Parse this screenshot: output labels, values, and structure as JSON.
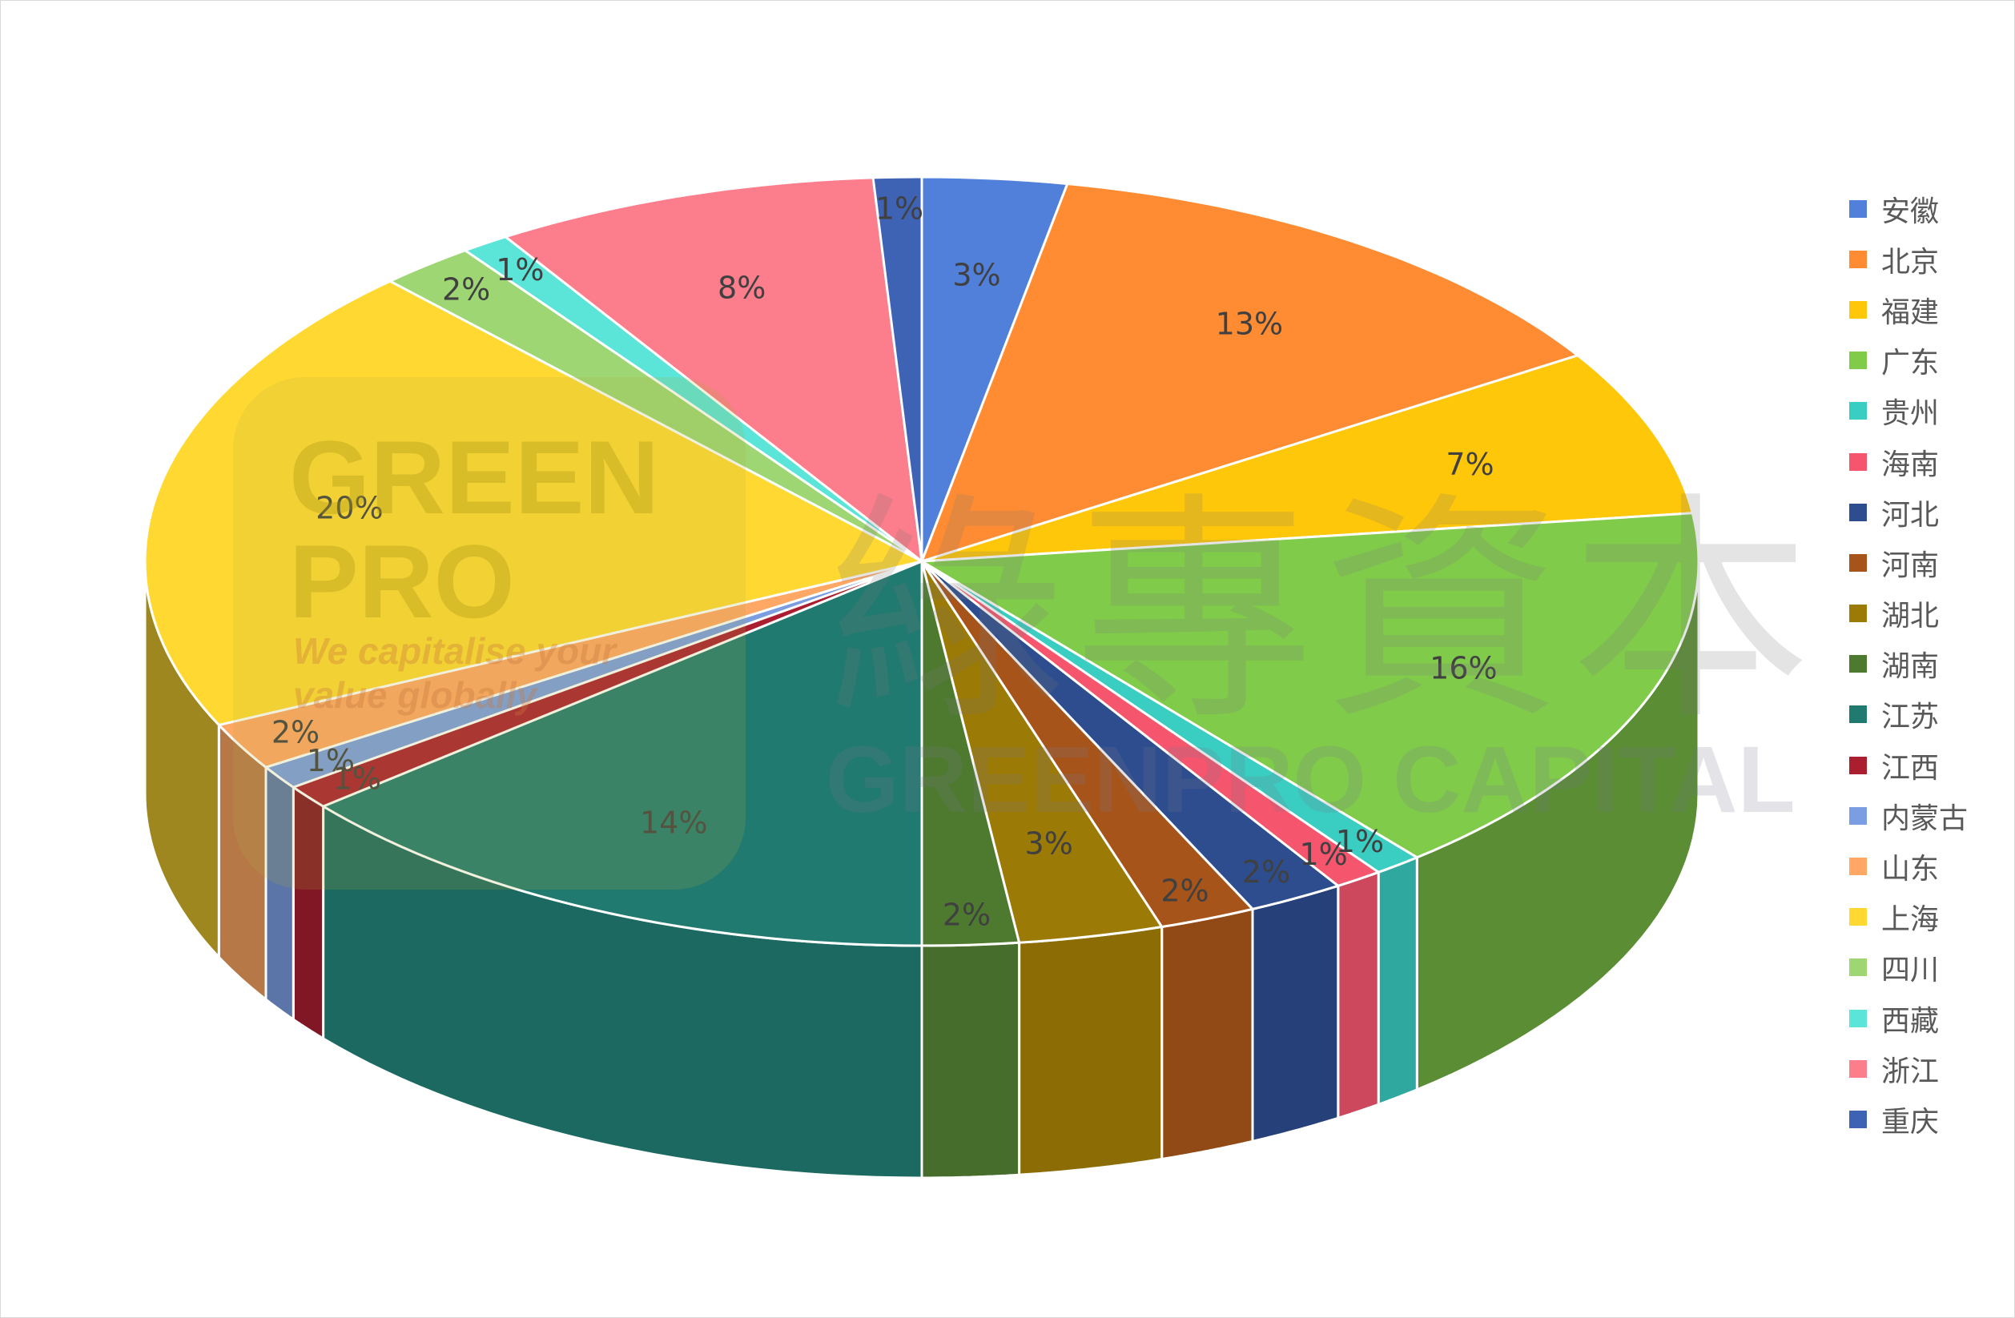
{
  "chart_data": {
    "type": "pie",
    "style": "3d",
    "legend_position": "right",
    "categories": [
      "安徽",
      "北京",
      "福建",
      "广东",
      "贵州",
      "海南",
      "河北",
      "河南",
      "湖北",
      "湖南",
      "江苏",
      "江西",
      "内蒙古",
      "山东",
      "上海",
      "四川",
      "西藏",
      "浙江",
      "重庆"
    ],
    "values": [
      3,
      13,
      7,
      16,
      1,
      1,
      2,
      2,
      3,
      2,
      14,
      1,
      1,
      2,
      20,
      2,
      1,
      8,
      1
    ],
    "data_labels": [
      "3%",
      "13%",
      "7%",
      "16%",
      "1%",
      "1%",
      "2%",
      "2%",
      "3%",
      "2%",
      "14%",
      "1%",
      "1%",
      "2%",
      "20%",
      "2%",
      "1%",
      "8%",
      "1%"
    ],
    "colors": [
      "#5180DB",
      "#FF8C33",
      "#FFC709",
      "#81CB4B",
      "#3ACDC1",
      "#F5566E",
      "#2D4D8E",
      "#A6541A",
      "#9C7A06",
      "#4E7A30",
      "#217A70",
      "#AA1E30",
      "#7B9DE2",
      "#FFA765",
      "#FFD932",
      "#9DD672",
      "#5BE4D8",
      "#FC7D8B",
      "#3E63B5"
    ]
  },
  "watermark": {
    "logo_line1": "GREEN",
    "logo_line2": "PRO",
    "tagline1": "We capitalise your",
    "tagline2": "value globally",
    "chinese": "綠專資本",
    "english": "GREENPRO CAPITAL"
  }
}
